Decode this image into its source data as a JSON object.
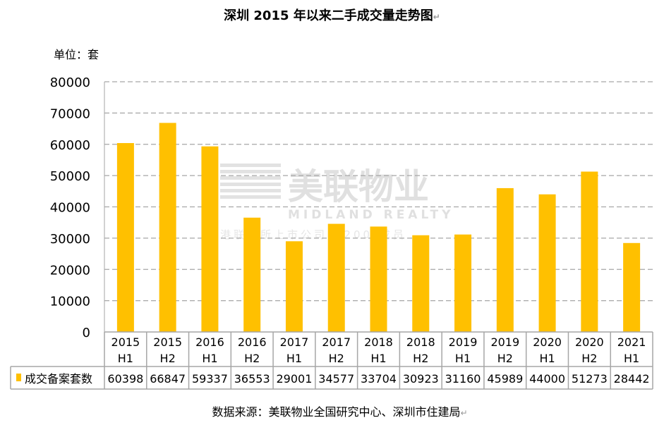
{
  "chart_data": {
    "type": "bar",
    "title": "深圳 2015 年以来二手成交量走势图",
    "unit_label": "单位：套",
    "categories": [
      [
        "2015",
        "H1"
      ],
      [
        "2015",
        "H2"
      ],
      [
        "2016",
        "H1"
      ],
      [
        "2016",
        "H2"
      ],
      [
        "2017",
        "H1"
      ],
      [
        "2017",
        "H2"
      ],
      [
        "2018",
        "H1"
      ],
      [
        "2018",
        "H2"
      ],
      [
        "2019",
        "H1"
      ],
      [
        "2019",
        "H2"
      ],
      [
        "2020",
        "H1"
      ],
      [
        "2020",
        "H2"
      ],
      [
        "2021",
        "H1"
      ]
    ],
    "series": [
      {
        "name": "成交备案套数",
        "color": "#FFC000",
        "values": [
          60398,
          66847,
          59337,
          36553,
          29001,
          34577,
          33704,
          30923,
          31160,
          45989,
          44000,
          51273,
          28442
        ]
      }
    ],
    "ylim": [
      0,
      80000
    ],
    "yticks": [
      "0",
      "10000",
      "20000",
      "30000",
      "40000",
      "50000",
      "60000",
      "70000",
      "80000"
    ],
    "grid": true,
    "legend": "data-table",
    "source": "数据来源：美联物业全国研究中心、深圳市住建局",
    "watermark": {
      "cn": "美联物业",
      "en": "MIDLAND REALTY",
      "sub": "港联交所上市公司(1200)成员"
    }
  }
}
